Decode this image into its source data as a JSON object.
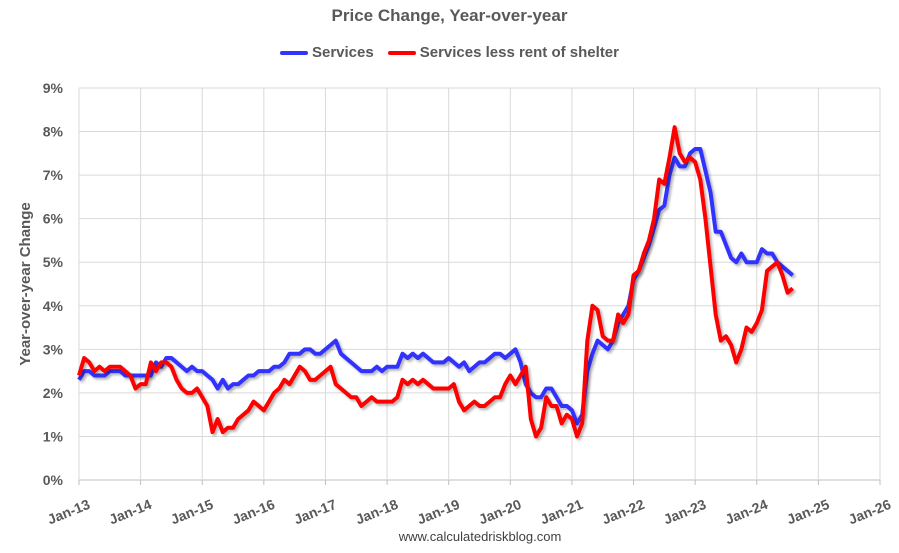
{
  "chart_data": {
    "type": "line",
    "title": "Price Change, Year-over-year",
    "xlabel": "",
    "ylabel": "Year-over-year Change",
    "ylim": [
      0,
      9
    ],
    "y_ticks": [
      "0%",
      "1%",
      "2%",
      "3%",
      "4%",
      "5%",
      "6%",
      "7%",
      "8%",
      "9%"
    ],
    "x_ticks": [
      "Jan-13",
      "Jan-14",
      "Jan-15",
      "Jan-16",
      "Jan-17",
      "Jan-18",
      "Jan-19",
      "Jan-20",
      "Jan-21",
      "Jan-22",
      "Jan-23",
      "Jan-24",
      "Jan-25",
      "Jan-26"
    ],
    "x_range": [
      "Jan-13",
      "Jan-26"
    ],
    "frequency": "monthly",
    "grid": true,
    "legend_position": "top",
    "series": [
      {
        "name": "Services",
        "color": "#3333ff",
        "values_by_year": {
          "2013": [
            2.3,
            2.5,
            2.5,
            2.4,
            2.4,
            2.4,
            2.5,
            2.5,
            2.5,
            2.4,
            2.4,
            2.4
          ],
          "2014": [
            2.4,
            2.4,
            2.4,
            2.7,
            2.6,
            2.8,
            2.8,
            2.7,
            2.6,
            2.5,
            2.6,
            2.5
          ],
          "2015": [
            2.5,
            2.4,
            2.3,
            2.1,
            2.3,
            2.1,
            2.2,
            2.2,
            2.3,
            2.4,
            2.4,
            2.5
          ],
          "2016": [
            2.5,
            2.5,
            2.6,
            2.6,
            2.7,
            2.9,
            2.9,
            2.9,
            3.0,
            3.0,
            2.9,
            2.9
          ],
          "2017": [
            3.0,
            3.1,
            3.2,
            2.9,
            2.8,
            2.7,
            2.6,
            2.5,
            2.5,
            2.5,
            2.6,
            2.5
          ],
          "2018": [
            2.6,
            2.6,
            2.6,
            2.9,
            2.8,
            2.9,
            2.8,
            2.9,
            2.8,
            2.7,
            2.7,
            2.7
          ],
          "2019": [
            2.8,
            2.7,
            2.6,
            2.7,
            2.5,
            2.6,
            2.7,
            2.7,
            2.8,
            2.9,
            2.9,
            2.8
          ],
          "2020": [
            2.9,
            3.0,
            2.7,
            2.2,
            2.0,
            1.9,
            1.9,
            2.1,
            2.1,
            1.9,
            1.7,
            1.7
          ],
          "2021": [
            1.6,
            1.3,
            1.5,
            2.5,
            2.9,
            3.2,
            3.1,
            3.0,
            3.2,
            3.6,
            3.8,
            4.0
          ],
          "2022": [
            4.6,
            4.8,
            5.1,
            5.4,
            5.8,
            6.2,
            6.3,
            7.0,
            7.4,
            7.2,
            7.2,
            7.5
          ],
          "2023": [
            7.6,
            7.6,
            7.1,
            6.6,
            5.7,
            5.7,
            5.4,
            5.1,
            5.0,
            5.2,
            5.0,
            5.0
          ],
          "2024": [
            5.0,
            5.3,
            5.2,
            5.2,
            5.0,
            4.9,
            4.8,
            4.7
          ]
        }
      },
      {
        "name": "Services less rent of shelter",
        "color": "#ff0000",
        "values_by_year": {
          "2013": [
            2.4,
            2.8,
            2.7,
            2.5,
            2.6,
            2.5,
            2.6,
            2.6,
            2.6,
            2.5,
            2.4,
            2.1
          ],
          "2014": [
            2.2,
            2.2,
            2.7,
            2.5,
            2.7,
            2.7,
            2.6,
            2.3,
            2.1,
            2.0,
            2.0,
            2.1
          ],
          "2015": [
            1.9,
            1.7,
            1.1,
            1.4,
            1.1,
            1.2,
            1.2,
            1.4,
            1.5,
            1.6,
            1.8,
            1.7
          ],
          "2016": [
            1.6,
            1.8,
            2.0,
            2.1,
            2.3,
            2.2,
            2.4,
            2.6,
            2.5,
            2.3,
            2.3,
            2.4
          ],
          "2017": [
            2.5,
            2.6,
            2.2,
            2.1,
            2.0,
            1.9,
            1.9,
            1.7,
            1.8,
            1.9,
            1.8,
            1.8
          ],
          "2018": [
            1.8,
            1.8,
            1.9,
            2.3,
            2.2,
            2.3,
            2.2,
            2.3,
            2.2,
            2.1,
            2.1,
            2.1
          ],
          "2019": [
            2.1,
            2.2,
            1.8,
            1.6,
            1.7,
            1.8,
            1.7,
            1.7,
            1.8,
            1.9,
            1.9,
            2.2
          ],
          "2020": [
            2.4,
            2.2,
            2.4,
            2.6,
            1.4,
            1.0,
            1.2,
            1.9,
            1.7,
            1.7,
            1.3,
            1.5
          ],
          "2021": [
            1.4,
            1.0,
            1.3,
            3.2,
            4.0,
            3.9,
            3.3,
            3.2,
            3.2,
            3.8,
            3.6,
            3.8
          ],
          "2022": [
            4.7,
            4.8,
            5.2,
            5.5,
            6.0,
            6.9,
            6.8,
            7.4,
            8.1,
            7.5,
            7.3,
            7.4
          ],
          "2023": [
            7.3,
            6.9,
            6.0,
            4.9,
            3.8,
            3.2,
            3.3,
            3.1,
            2.7,
            3.0,
            3.5,
            3.4
          ],
          "2024": [
            3.6,
            3.9,
            4.8,
            4.9,
            5.0,
            4.7,
            4.3,
            4.4
          ]
        }
      }
    ]
  },
  "footer": "www.calculatedriskblog.com"
}
